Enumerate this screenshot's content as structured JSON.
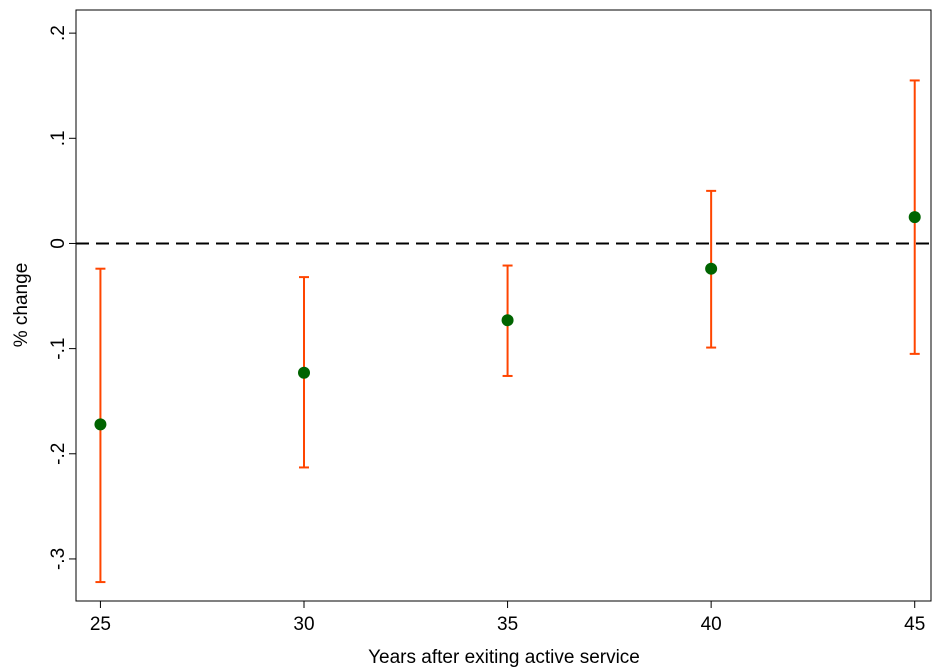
{
  "chart_data": {
    "type": "scatter",
    "xlabel": "Years after exiting active service",
    "ylabel": "% change",
    "x": [
      25,
      30,
      35,
      40,
      45
    ],
    "series": [
      {
        "values": [
          -0.172,
          -0.123,
          -0.073,
          -0.024,
          0.025
        ],
        "ci_low": [
          -0.322,
          -0.213,
          -0.126,
          -0.099,
          -0.105
        ],
        "ci_high": [
          -0.024,
          -0.032,
          -0.021,
          0.05,
          0.155
        ]
      }
    ],
    "xticks": [
      25,
      30,
      35,
      40,
      45
    ],
    "xtick_labels": [
      "25",
      "30",
      "35",
      "40",
      "45"
    ],
    "yticks": [
      -0.3,
      -0.2,
      -0.1,
      0,
      0.1,
      0.2
    ],
    "ytick_labels": [
      "-.3",
      "-.2",
      "-.1",
      "0",
      ".1",
      ".2"
    ],
    "xlim": [
      24.4,
      45.4
    ],
    "ylim": [
      -0.34,
      0.222
    ],
    "reference_line_y": 0,
    "grid": false,
    "colors": {
      "point": "#006400",
      "error_bar": "#ff4500",
      "reference_line": "#000000"
    }
  }
}
